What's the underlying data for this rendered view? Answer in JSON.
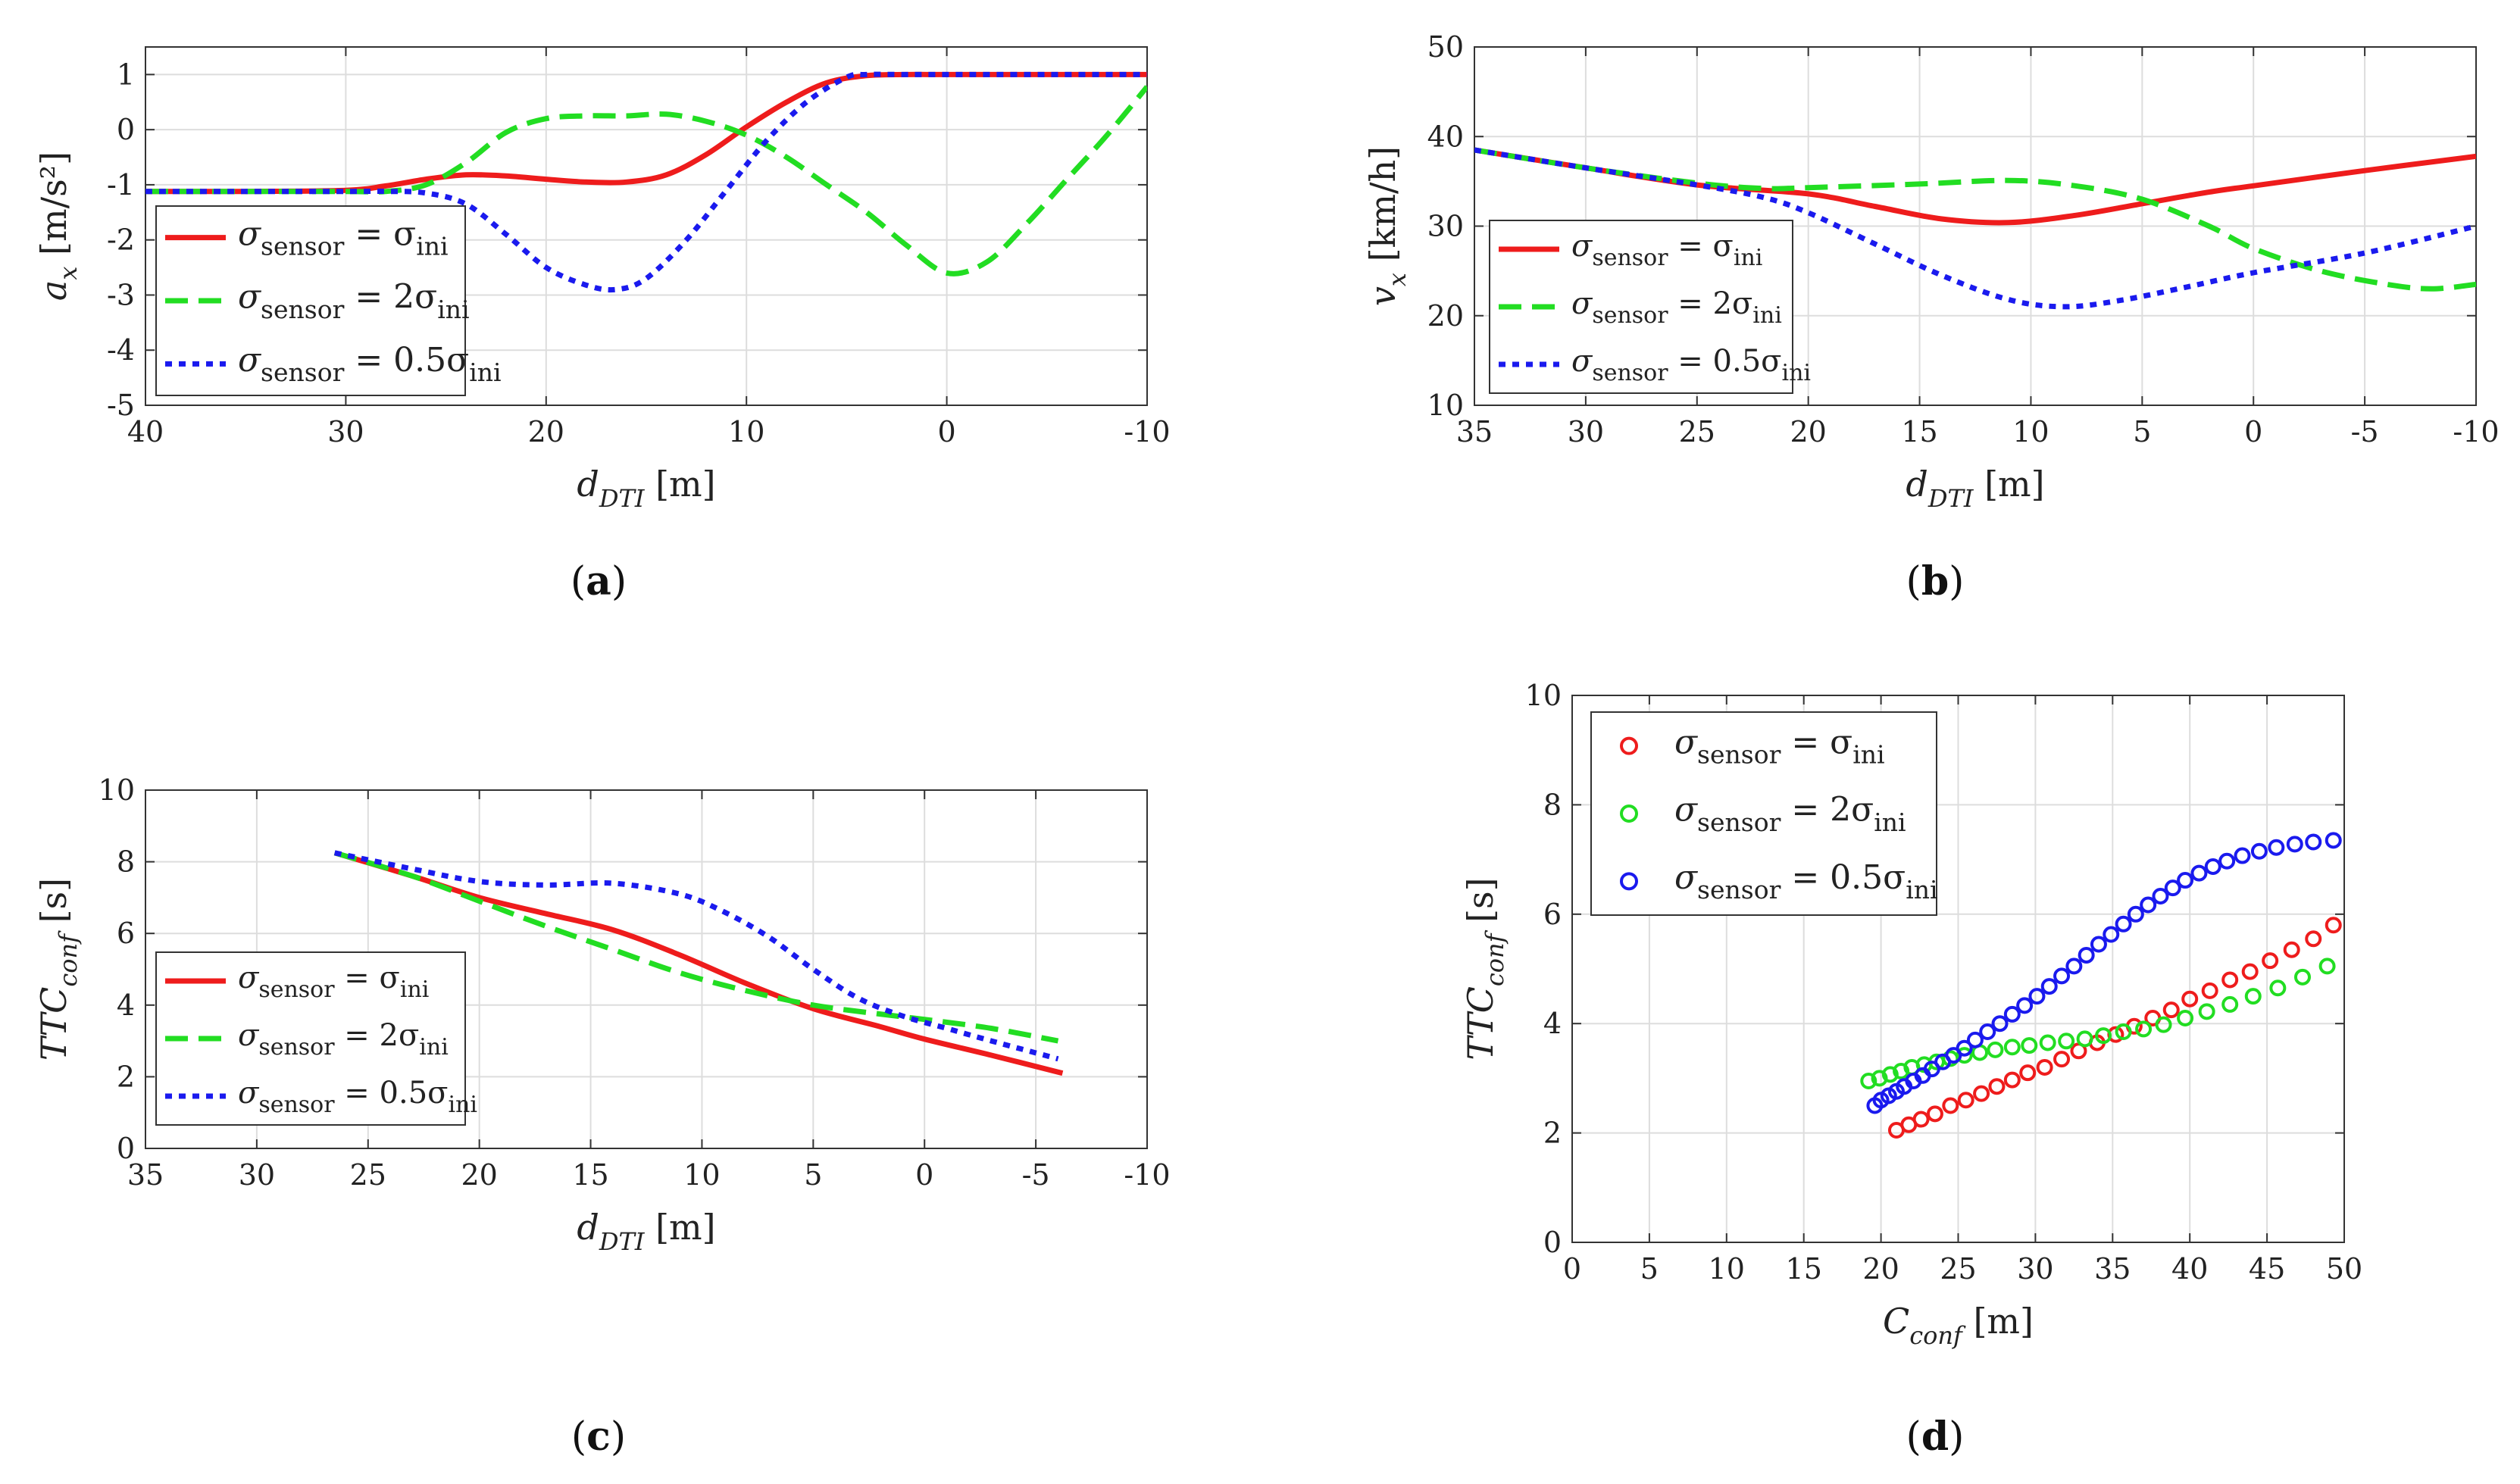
{
  "colors": {
    "red": "#ee1c1c",
    "green": "#22dd22",
    "blue": "#1a1aee",
    "axis": "#333333",
    "grid": "#dddddd"
  },
  "chart_data": [
    {
      "id": "a",
      "type": "line",
      "panel_label": "a",
      "xlabel_main": "d",
      "xlabel_sub": "DTI",
      "xlabel_unit": " [m]",
      "ylabel_main": "a",
      "ylabel_sub": "x",
      "ylabel_unit": "  [m/s²]",
      "xlim": [
        40,
        -10
      ],
      "ylim": [
        -5,
        1.5
      ],
      "xticks": [
        40,
        30,
        20,
        10,
        0,
        -10
      ],
      "xtick_labels": [
        "40",
        "30",
        "20",
        "10",
        "0",
        "-10"
      ],
      "yticks": [
        -5,
        -4,
        -3,
        -2,
        -1,
        0,
        1
      ],
      "ytick_labels": [
        "-5",
        "-4",
        "-3",
        "-2",
        "-1",
        "0",
        "1"
      ],
      "grid": true,
      "legend": {
        "entries": [
          {
            "lhs": "σ",
            "lhs_sub": "sensor",
            "rhs": " = σ",
            "rhs_sub": "ini"
          },
          {
            "lhs": "σ",
            "lhs_sub": "sensor",
            "rhs": " = 2σ",
            "rhs_sub": "ini"
          },
          {
            "lhs": "σ",
            "lhs_sub": "sensor",
            "rhs": " = 0.5σ",
            "rhs_sub": "ini"
          }
        ]
      },
      "series": [
        {
          "name": "σsensor = σini",
          "color": "red",
          "style": "solid",
          "x": [
            40,
            35,
            30,
            28,
            26,
            24,
            22,
            20,
            18,
            16,
            14,
            12,
            10,
            8,
            6,
            4,
            2,
            0,
            -5,
            -10
          ],
          "y": [
            -1.12,
            -1.12,
            -1.1,
            -1.02,
            -0.9,
            -0.82,
            -0.84,
            -0.9,
            -0.95,
            -0.95,
            -0.82,
            -0.45,
            0.05,
            0.5,
            0.85,
            0.98,
            1.0,
            1.0,
            1.0,
            1.0
          ]
        },
        {
          "name": "σsensor = 2σini",
          "color": "green",
          "style": "dashed",
          "x": [
            40,
            35,
            30,
            28,
            26,
            24,
            22,
            20,
            18,
            16,
            14,
            12,
            10,
            8,
            6,
            4,
            2,
            0,
            -2,
            -4,
            -6,
            -8,
            -10
          ],
          "y": [
            -1.12,
            -1.12,
            -1.12,
            -1.12,
            -1.0,
            -0.6,
            -0.05,
            0.2,
            0.25,
            0.25,
            0.28,
            0.15,
            -0.1,
            -0.5,
            -1.0,
            -1.5,
            -2.1,
            -2.6,
            -2.4,
            -1.7,
            -0.9,
            -0.1,
            0.78
          ]
        },
        {
          "name": "σsensor = 0.5σini",
          "color": "blue",
          "style": "dotted",
          "x": [
            40,
            35,
            30,
            28,
            26,
            24,
            22,
            20,
            18,
            16.5,
            15,
            13,
            11,
            9,
            7,
            5,
            4,
            2,
            0,
            -5,
            -10
          ],
          "y": [
            -1.12,
            -1.12,
            -1.12,
            -1.12,
            -1.15,
            -1.35,
            -1.9,
            -2.5,
            -2.82,
            -2.9,
            -2.7,
            -2.0,
            -1.1,
            -0.2,
            0.5,
            0.95,
            1.0,
            1.0,
            1.0,
            1.0,
            1.0
          ]
        }
      ]
    },
    {
      "id": "b",
      "type": "line",
      "panel_label": "b",
      "xlabel_main": "d",
      "xlabel_sub": "DTI",
      "xlabel_unit": " [m]",
      "ylabel_main": "v",
      "ylabel_sub": "x",
      "ylabel_unit": "  [km/h]",
      "xlim": [
        35,
        -10
      ],
      "ylim": [
        10,
        50
      ],
      "xticks": [
        35,
        30,
        25,
        20,
        15,
        10,
        5,
        0,
        -5,
        -10
      ],
      "xtick_labels": [
        "35",
        "30",
        "25",
        "20",
        "15",
        "10",
        "5",
        "0",
        "-5",
        "-10"
      ],
      "yticks": [
        10,
        20,
        30,
        40,
        50
      ],
      "ytick_labels": [
        "10",
        "20",
        "30",
        "40",
        "50"
      ],
      "grid": true,
      "legend": {
        "entries": [
          {
            "lhs": "σ",
            "lhs_sub": "sensor",
            "rhs": " = σ",
            "rhs_sub": "ini"
          },
          {
            "lhs": "σ",
            "lhs_sub": "sensor",
            "rhs": " = 2σ",
            "rhs_sub": "ini"
          },
          {
            "lhs": "σ",
            "lhs_sub": "sensor",
            "rhs": " = 0.5σ",
            "rhs_sub": "ini"
          }
        ]
      },
      "series": [
        {
          "name": "σsensor = σini",
          "color": "red",
          "style": "solid",
          "x": [
            35,
            30,
            25,
            20,
            17,
            14,
            11,
            8,
            5,
            2,
            0,
            -5,
            -10
          ],
          "y": [
            38.5,
            36.5,
            34.6,
            33.6,
            32.2,
            30.8,
            30.4,
            31.2,
            32.5,
            33.8,
            34.5,
            36.2,
            37.8
          ]
        },
        {
          "name": "σsensor = 2σini",
          "color": "green",
          "style": "dashed",
          "x": [
            35,
            30,
            25,
            22,
            20,
            15,
            11,
            8,
            5,
            2,
            0,
            -3,
            -6,
            -8,
            -10
          ],
          "y": [
            38.5,
            36.5,
            34.8,
            34.2,
            34.3,
            34.7,
            35.1,
            34.5,
            33.0,
            30.0,
            27.5,
            25.0,
            23.5,
            23.0,
            23.5
          ]
        },
        {
          "name": "σsensor = 0.5σini",
          "color": "blue",
          "style": "dotted",
          "x": [
            35,
            30,
            25,
            22,
            20,
            17,
            14,
            11,
            8.5,
            6,
            3,
            0,
            -5,
            -10
          ],
          "y": [
            38.5,
            36.5,
            34.6,
            33.2,
            31.5,
            28.0,
            24.5,
            21.8,
            21.0,
            21.7,
            23.2,
            24.8,
            27.0,
            30.0
          ]
        }
      ]
    },
    {
      "id": "c",
      "type": "line",
      "panel_label": "c",
      "xlabel_main": "d",
      "xlabel_sub": "DTI",
      "xlabel_unit": " [m]",
      "ylabel_main": "TTC",
      "ylabel_sub": "conf",
      "ylabel_unit": "  [s]",
      "xlim": [
        35,
        -10
      ],
      "ylim": [
        0,
        10
      ],
      "xticks": [
        35,
        30,
        25,
        20,
        15,
        10,
        5,
        0,
        -5,
        -10
      ],
      "xtick_labels": [
        "35",
        "30",
        "25",
        "20",
        "15",
        "10",
        "5",
        "0",
        "-5",
        "-10"
      ],
      "yticks": [
        0,
        2,
        4,
        6,
        8,
        10
      ],
      "ytick_labels": [
        "0",
        "2",
        "4",
        "6",
        "8",
        "10"
      ],
      "grid": true,
      "legend": {
        "entries": [
          {
            "lhs": "σ",
            "lhs_sub": "sensor",
            "rhs": " = σ",
            "rhs_sub": "ini"
          },
          {
            "lhs": "σ",
            "lhs_sub": "sensor",
            "rhs": " = 2σ",
            "rhs_sub": "ini"
          },
          {
            "lhs": "σ",
            "lhs_sub": "sensor",
            "rhs": " = 0.5σ",
            "rhs_sub": "ini"
          }
        ]
      },
      "series": [
        {
          "name": "σsensor = σini",
          "color": "red",
          "style": "solid",
          "x": [
            26.5,
            23,
            20,
            17,
            14,
            11,
            8,
            5,
            2,
            0,
            -3,
            -6.2
          ],
          "y": [
            8.25,
            7.6,
            7.0,
            6.55,
            6.1,
            5.4,
            4.6,
            3.9,
            3.4,
            3.05,
            2.6,
            2.1
          ]
        },
        {
          "name": "σsensor = 2σini",
          "color": "green",
          "style": "dashed",
          "x": [
            26.5,
            23,
            20,
            17,
            14,
            11,
            8,
            5,
            2,
            0,
            -3,
            -6
          ],
          "y": [
            8.25,
            7.6,
            6.9,
            6.2,
            5.55,
            4.9,
            4.4,
            4.0,
            3.75,
            3.6,
            3.35,
            3.0
          ]
        },
        {
          "name": "σsensor = 0.5σini",
          "color": "blue",
          "style": "dotted",
          "x": [
            26.5,
            23,
            20,
            17,
            14,
            11,
            9,
            7,
            5,
            3,
            1,
            -1,
            -3,
            -6
          ],
          "y": [
            8.25,
            7.8,
            7.45,
            7.35,
            7.4,
            7.1,
            6.6,
            5.9,
            5.0,
            4.2,
            3.7,
            3.35,
            3.0,
            2.5
          ]
        }
      ]
    },
    {
      "id": "d",
      "type": "scatter",
      "panel_label": "d",
      "xlabel_main": "C",
      "xlabel_sub": "conf",
      "xlabel_unit": " [m]",
      "ylabel_main": "TTC",
      "ylabel_sub": "conf",
      "ylabel_unit": "  [s]",
      "xlim": [
        0,
        50
      ],
      "ylim": [
        0,
        10
      ],
      "xticks": [
        0,
        5,
        10,
        15,
        20,
        25,
        30,
        35,
        40,
        45,
        50
      ],
      "xtick_labels": [
        "0",
        "5",
        "10",
        "15",
        "20",
        "25",
        "30",
        "35",
        "40",
        "45",
        "50"
      ],
      "yticks": [
        0,
        2,
        4,
        6,
        8,
        10
      ],
      "ytick_labels": [
        "0",
        "2",
        "4",
        "6",
        "8",
        "10"
      ],
      "grid": true,
      "legend": {
        "entries": [
          {
            "lhs": "σ",
            "lhs_sub": "sensor",
            "rhs": " = σ",
            "rhs_sub": "ini"
          },
          {
            "lhs": "σ",
            "lhs_sub": "sensor",
            "rhs": " = 2σ",
            "rhs_sub": "ini"
          },
          {
            "lhs": "σ",
            "lhs_sub": "sensor",
            "rhs": " = 0.5σ",
            "rhs_sub": "ini"
          }
        ]
      },
      "series": [
        {
          "name": "σsensor = σini",
          "color": "red",
          "style": "marker",
          "x": [
            21.0,
            21.8,
            22.6,
            23.5,
            24.5,
            25.5,
            26.5,
            27.5,
            28.5,
            29.5,
            30.6,
            31.7,
            32.8,
            34.0,
            35.2,
            36.4,
            37.6,
            38.8,
            40.0,
            41.3,
            42.6,
            43.9,
            45.2,
            46.6,
            48.0,
            49.3
          ],
          "y": [
            2.05,
            2.15,
            2.25,
            2.35,
            2.5,
            2.6,
            2.72,
            2.85,
            2.97,
            3.1,
            3.2,
            3.35,
            3.5,
            3.65,
            3.8,
            3.95,
            4.1,
            4.25,
            4.45,
            4.6,
            4.8,
            4.95,
            5.15,
            5.35,
            5.55,
            5.8
          ]
        },
        {
          "name": "σsensor = 2σini",
          "color": "green",
          "style": "marker",
          "x": [
            19.2,
            19.9,
            20.6,
            21.3,
            22.0,
            22.8,
            23.6,
            24.5,
            25.4,
            26.4,
            27.4,
            28.5,
            29.6,
            30.8,
            32.0,
            33.2,
            34.4,
            35.7,
            37.0,
            38.3,
            39.7,
            41.1,
            42.6,
            44.1,
            45.7,
            47.3,
            48.9
          ],
          "y": [
            2.95,
            3.0,
            3.07,
            3.13,
            3.2,
            3.25,
            3.3,
            3.36,
            3.42,
            3.47,
            3.52,
            3.57,
            3.6,
            3.65,
            3.68,
            3.72,
            3.78,
            3.85,
            3.9,
            3.98,
            4.1,
            4.22,
            4.35,
            4.5,
            4.65,
            4.85,
            5.05
          ]
        },
        {
          "name": "σsensor = 0.5σini",
          "color": "blue",
          "style": "marker",
          "x": [
            19.6,
            20.0,
            20.5,
            21.0,
            21.5,
            22.1,
            22.7,
            23.3,
            24.0,
            24.7,
            25.4,
            26.1,
            26.9,
            27.7,
            28.5,
            29.3,
            30.1,
            30.9,
            31.7,
            32.5,
            33.3,
            34.1,
            34.9,
            35.7,
            36.5,
            37.3,
            38.1,
            38.9,
            39.7,
            40.6,
            41.5,
            42.4,
            43.4,
            44.5,
            45.6,
            46.8,
            48.0,
            49.3
          ],
          "y": [
            2.5,
            2.6,
            2.68,
            2.76,
            2.85,
            2.95,
            3.05,
            3.17,
            3.3,
            3.42,
            3.55,
            3.7,
            3.85,
            4.0,
            4.17,
            4.33,
            4.5,
            4.68,
            4.87,
            5.05,
            5.25,
            5.45,
            5.63,
            5.82,
            6.0,
            6.17,
            6.33,
            6.48,
            6.62,
            6.75,
            6.87,
            6.97,
            7.07,
            7.15,
            7.22,
            7.28,
            7.32,
            7.35
          ]
        }
      ]
    }
  ]
}
